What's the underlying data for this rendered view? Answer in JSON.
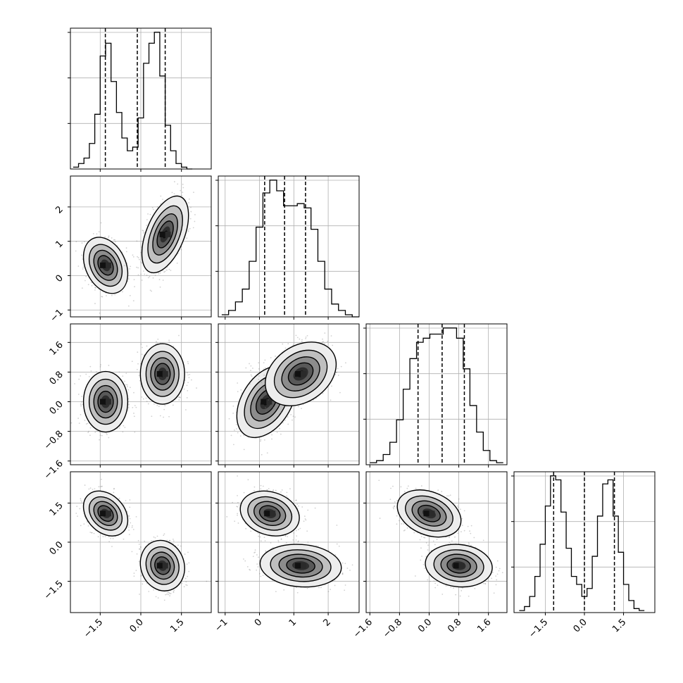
{
  "chart_data": {
    "type": "corner",
    "variables": 4,
    "grid": true,
    "xlabels": [
      "",
      "",
      "",
      ""
    ],
    "axes": [
      {
        "range": [
          -2.6,
          2.6
        ],
        "ticks": [
          -1.5,
          0.0,
          1.5
        ],
        "tick_labels": [
          "−1.5",
          "0.0",
          "1.5"
        ]
      },
      {
        "range": [
          -1.2,
          2.9
        ],
        "ticks": [
          -1,
          0,
          1,
          2
        ],
        "tick_labels": [
          "−1",
          "0",
          "1",
          "2"
        ]
      },
      {
        "range": [
          -1.7,
          2.1
        ],
        "ticks": [
          -1.6,
          -0.8,
          0.0,
          0.8,
          1.6
        ],
        "tick_labels": [
          "−1.6",
          "−0.8",
          "0.0",
          "0.8",
          "1.6"
        ]
      },
      {
        "range": [
          -2.7,
          2.7
        ],
        "ticks": [
          -1.5,
          0.0,
          1.5
        ],
        "tick_labels": [
          "−1.5",
          "0.0",
          "1.5"
        ]
      }
    ],
    "histograms": [
      {
        "variable": 0,
        "bin_start": -2.5,
        "bin_width": 0.2,
        "counts": [
          1,
          3,
          6,
          14,
          30,
          62,
          69,
          48,
          31,
          17,
          10,
          12,
          28,
          58,
          69,
          75,
          51,
          24,
          10,
          3,
          1,
          0
        ],
        "quantiles": [
          -1.31,
          -0.13,
          0.9
        ]
      },
      {
        "variable": 1,
        "bin_start": -1.1,
        "bin_width": 0.2,
        "counts": [
          1,
          3,
          7,
          13,
          26,
          42,
          58,
          64,
          59,
          52,
          52,
          53,
          51,
          41,
          26,
          13,
          6,
          3,
          1,
          0
        ],
        "quantiles": [
          0.15,
          0.73,
          1.34
        ]
      },
      {
        "variable": 2,
        "bin_start": -1.6,
        "bin_width": 0.18,
        "counts": [
          1,
          2,
          5,
          11,
          22,
          37,
          52,
          60,
          62,
          64,
          64,
          67,
          67,
          62,
          47,
          29,
          16,
          7,
          2,
          1
        ],
        "quantiles": [
          -0.3,
          0.35,
          0.95
        ]
      },
      {
        "variable": 3,
        "bin_start": -2.5,
        "bin_width": 0.2,
        "counts": [
          1,
          3,
          8,
          18,
          34,
          53,
          68,
          66,
          50,
          32,
          18,
          14,
          8,
          12,
          28,
          48,
          64,
          66,
          48,
          30,
          14,
          6,
          2,
          1
        ],
        "quantiles": [
          -1.18,
          0.0,
          1.15
        ]
      }
    ],
    "pairs": [
      {
        "x": 0,
        "y": 1,
        "clusters": [
          {
            "mean": [
              -1.3,
              0.3
            ],
            "sd": [
              0.38,
              0.38
            ],
            "rho": -0.3
          },
          {
            "mean": [
              0.9,
              1.2
            ],
            "sd": [
              0.4,
              0.52
            ],
            "rho": 0.5
          }
        ]
      },
      {
        "x": 0,
        "y": 2,
        "clusters": [
          {
            "mean": [
              -1.3,
              0.0
            ],
            "sd": [
              0.38,
              0.38
            ],
            "rho": 0.0
          },
          {
            "mean": [
              0.8,
              0.75
            ],
            "sd": [
              0.38,
              0.38
            ],
            "rho": 0.0
          }
        ]
      },
      {
        "x": 0,
        "y": 3,
        "clusters": [
          {
            "mean": [
              -1.3,
              1.1
            ],
            "sd": [
              0.38,
              0.4
            ],
            "rho": -0.3
          },
          {
            "mean": [
              0.8,
              -0.9
            ],
            "sd": [
              0.38,
              0.45
            ],
            "rho": -0.1
          }
        ]
      },
      {
        "x": 1,
        "y": 2,
        "clusters": [
          {
            "mean": [
              0.2,
              0.0
            ],
            "sd": [
              0.4,
              0.45
            ],
            "rho": 0.4
          },
          {
            "mean": [
              1.2,
              0.75
            ],
            "sd": [
              0.48,
              0.4
            ],
            "rho": 0.3
          }
        ]
      },
      {
        "x": 1,
        "y": 3,
        "clusters": [
          {
            "mean": [
              0.3,
              1.1
            ],
            "sd": [
              0.4,
              0.4
            ],
            "rho": -0.2
          },
          {
            "mean": [
              1.2,
              -0.9
            ],
            "sd": [
              0.55,
              0.38
            ],
            "rho": -0.1
          }
        ]
      },
      {
        "x": 2,
        "y": 3,
        "clusters": [
          {
            "mean": [
              0.0,
              1.1
            ],
            "sd": [
              0.4,
              0.42
            ],
            "rho": -0.3
          },
          {
            "mean": [
              0.8,
              -0.9
            ],
            "sd": [
              0.42,
              0.38
            ],
            "rho": -0.1
          }
        ]
      }
    ]
  }
}
